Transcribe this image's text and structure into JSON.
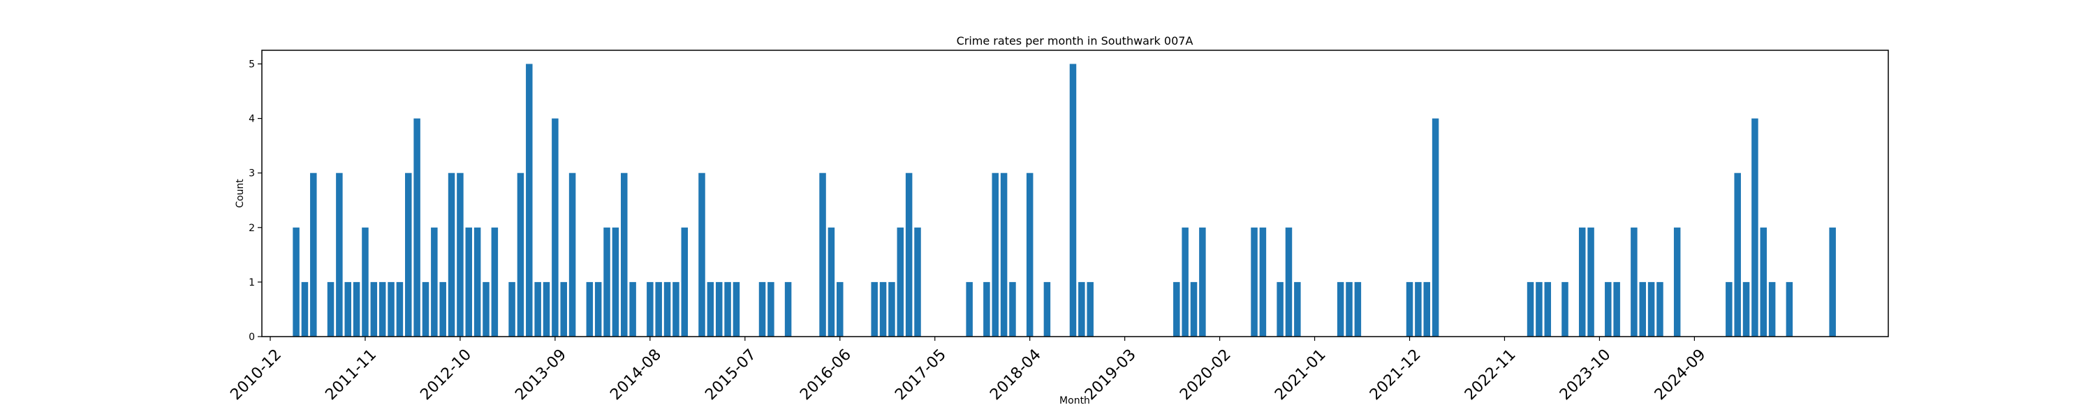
{
  "chart_data": {
    "type": "bar",
    "title": "Crime rates per month in Southwark 007A",
    "xlabel": "Month",
    "ylabel": "Count",
    "start_month": "2010-12",
    "bar_color": "#1f77b4",
    "ylim": [
      0,
      5.25
    ],
    "yticks": [
      0,
      1,
      2,
      3,
      4,
      5
    ],
    "xticks": [
      "2010-12",
      "2011-11",
      "2012-10",
      "2013-09",
      "2014-08",
      "2015-07",
      "2016-06",
      "2017-05",
      "2018-04",
      "2019-03",
      "2020-02",
      "2021-01",
      "2021-12",
      "2022-11",
      "2023-10",
      "2024-09"
    ],
    "grid": false,
    "values": [
      0,
      0,
      0,
      2,
      1,
      3,
      0,
      1,
      3,
      1,
      1,
      2,
      1,
      1,
      1,
      1,
      3,
      4,
      1,
      2,
      1,
      3,
      3,
      2,
      2,
      1,
      2,
      0,
      1,
      3,
      5,
      1,
      1,
      4,
      1,
      3,
      0,
      1,
      1,
      2,
      2,
      3,
      1,
      0,
      1,
      1,
      1,
      1,
      2,
      0,
      3,
      1,
      1,
      1,
      1,
      0,
      0,
      1,
      1,
      0,
      1,
      0,
      0,
      0,
      3,
      2,
      1,
      0,
      0,
      0,
      1,
      1,
      1,
      2,
      3,
      2,
      0,
      0,
      0,
      0,
      0,
      1,
      0,
      1,
      3,
      3,
      1,
      0,
      3,
      0,
      1,
      0,
      0,
      5,
      1,
      1,
      0,
      0,
      0,
      0,
      0,
      0,
      0,
      0,
      0,
      1,
      2,
      1,
      2,
      0,
      0,
      0,
      0,
      0,
      2,
      2,
      0,
      1,
      2,
      1,
      0,
      0,
      0,
      0,
      1,
      1,
      1,
      0,
      0,
      0,
      0,
      0,
      1,
      1,
      1,
      4,
      0,
      0,
      0,
      0,
      0,
      0,
      0,
      0,
      0,
      0,
      1,
      1,
      1,
      0,
      1,
      0,
      2,
      2,
      0,
      1,
      1,
      0,
      2,
      1,
      1,
      1,
      0,
      2,
      0,
      0,
      0,
      0,
      0,
      1,
      3,
      1,
      4,
      2,
      1,
      0,
      1,
      0,
      0,
      0,
      0,
      2
    ]
  }
}
